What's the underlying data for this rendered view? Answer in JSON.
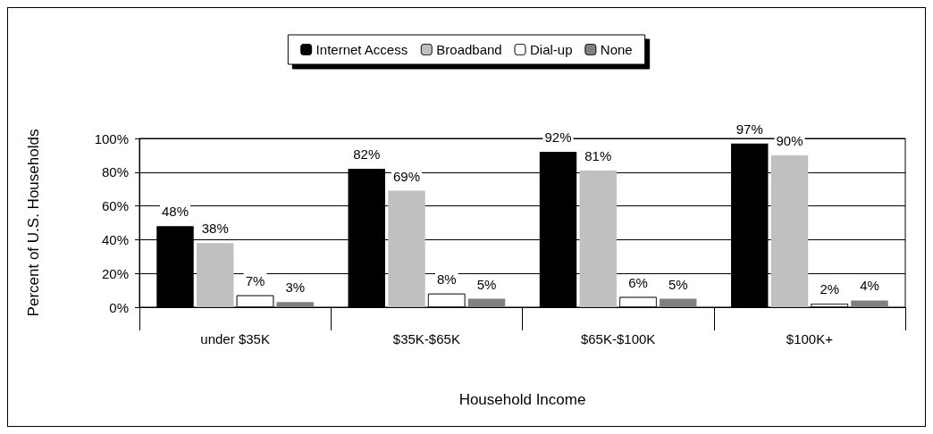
{
  "chart_data": {
    "type": "bar",
    "xlabel": "Household Income",
    "ylabel": "Percent of U.S. Households",
    "categories": [
      "under $35K",
      "$35K-$65K",
      "$65K-$100K",
      "$100K+"
    ],
    "series": [
      {
        "name": "Internet Access",
        "color": "#000000",
        "values": [
          48,
          82,
          92,
          97
        ],
        "value_labels": [
          "48%",
          "82%",
          "92%",
          "97%"
        ]
      },
      {
        "name": "Broadband",
        "color": "#c0c0c0",
        "values": [
          38,
          69,
          81,
          90
        ],
        "value_labels": [
          "38%",
          "69%",
          "81%",
          "90%"
        ]
      },
      {
        "name": "Dial-up",
        "color": "#ffffff",
        "values": [
          7,
          8,
          6,
          2
        ],
        "value_labels": [
          "7%",
          "8%",
          "6%",
          "2%"
        ]
      },
      {
        "name": "None",
        "color": "#808080",
        "values": [
          3,
          5,
          5,
          4
        ],
        "value_labels": [
          "3%",
          "5%",
          "5%",
          "4%"
        ]
      }
    ],
    "ylim": [
      0,
      100
    ],
    "yticks": [
      {
        "value": 0,
        "label": "0%"
      },
      {
        "value": 20,
        "label": "20%"
      },
      {
        "value": 40,
        "label": "40%"
      },
      {
        "value": 60,
        "label": "60%"
      },
      {
        "value": 80,
        "label": "80%"
      },
      {
        "value": 100,
        "label": "100%"
      }
    ],
    "grid": "y",
    "legend": "top"
  }
}
